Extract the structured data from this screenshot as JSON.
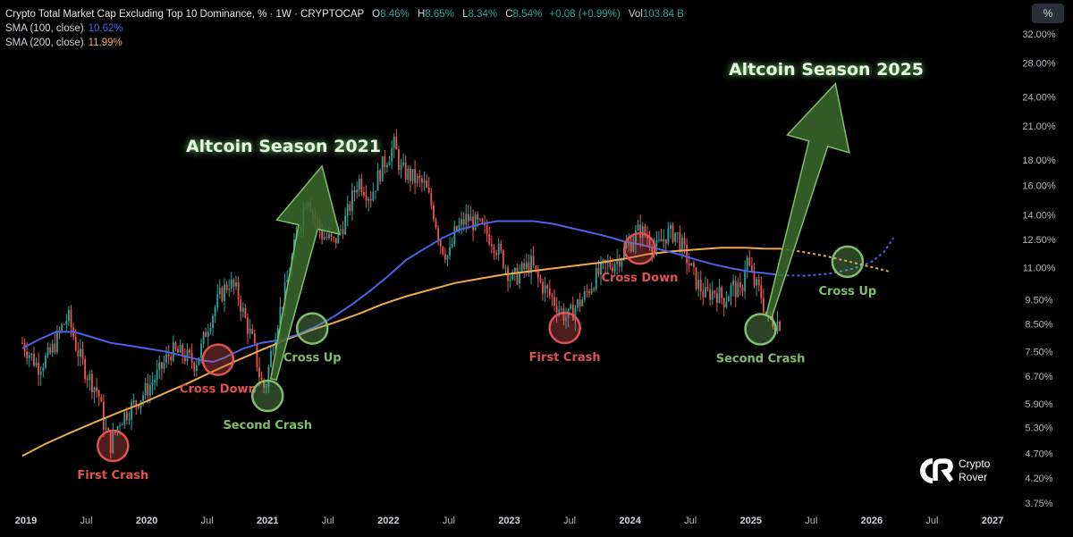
{
  "header": {
    "symbol_title": "Crypto Total Market Cap Excluding Top 10 Dominance, % · 1W · CRYPTOCAP",
    "open_label": "O",
    "open": "8.46%",
    "high_label": "H",
    "high": "8.65%",
    "low_label": "L",
    "low": "8.34%",
    "close_label": "C",
    "close": "8.54%",
    "change": "+0.08 (+0.99%)",
    "vol_label": "Vol",
    "vol": "103.84 B",
    "sma100_label": "SMA (100, close)",
    "sma100_value": "10.62%",
    "sma200_label": "SMA (200, close)",
    "sma200_value": "11.99%"
  },
  "controls": {
    "scale_mode": "%"
  },
  "watermark": {
    "line1": "Crypto",
    "line2": "Rover"
  },
  "colors": {
    "up": "#26a69a",
    "down": "#ef5350",
    "sma100": "#4a63e8",
    "sma200": "#f0a94b",
    "annot_red": "#e05252",
    "annot_green": "#7fbf6a",
    "arrow_fill": "#3b6a2e",
    "arrow_stroke": "#7fbf6a"
  },
  "chart_data": {
    "type": "candlestick",
    "title": "Crypto Total Market Cap Excluding Top 10 Dominance, %",
    "y_scale": "log",
    "ylim": [
      3.6,
      34
    ],
    "y_ticks": [
      "32.00%",
      "28.00%",
      "24.00%",
      "21.00%",
      "18.00%",
      "16.00%",
      "14.00%",
      "12.50%",
      "11.00%",
      "9.50%",
      "8.50%",
      "7.50%",
      "6.70%",
      "5.90%",
      "5.30%",
      "4.70%",
      "4.20%",
      "3.75%"
    ],
    "y_tick_values": [
      32,
      28,
      24,
      21,
      18,
      16,
      14,
      12.5,
      11,
      9.5,
      8.5,
      7.5,
      6.7,
      5.9,
      5.3,
      4.7,
      4.2,
      3.75
    ],
    "x_range": [
      2018.95,
      2027.7
    ],
    "x_ticks": [
      {
        "label": "2019",
        "x": 2019.0,
        "bold": true
      },
      {
        "label": "Jul",
        "x": 2019.5
      },
      {
        "label": "2020",
        "x": 2020.0,
        "bold": true
      },
      {
        "label": "Jul",
        "x": 2020.5
      },
      {
        "label": "2021",
        "x": 2021.0,
        "bold": true
      },
      {
        "label": "Jul",
        "x": 2021.5
      },
      {
        "label": "2022",
        "x": 2022.0,
        "bold": true
      },
      {
        "label": "Jul",
        "x": 2022.5
      },
      {
        "label": "2023",
        "x": 2023.0,
        "bold": true
      },
      {
        "label": "Jul",
        "x": 2023.5
      },
      {
        "label": "2024",
        "x": 2024.0,
        "bold": true
      },
      {
        "label": "Jul",
        "x": 2024.5
      },
      {
        "label": "2025",
        "x": 2025.0,
        "bold": true
      },
      {
        "label": "Jul",
        "x": 2025.5
      },
      {
        "label": "2026",
        "x": 2026.0,
        "bold": true
      },
      {
        "label": "Jul",
        "x": 2026.5
      },
      {
        "label": "2027",
        "x": 2027.0,
        "bold": true
      }
    ],
    "price_path": [
      [
        2018.97,
        7.8
      ],
      [
        2019.1,
        7.0
      ],
      [
        2019.2,
        7.4
      ],
      [
        2019.3,
        8.4
      ],
      [
        2019.35,
        8.8
      ],
      [
        2019.42,
        7.6
      ],
      [
        2019.5,
        6.8
      ],
      [
        2019.6,
        6.2
      ],
      [
        2019.65,
        5.3
      ],
      [
        2019.7,
        4.9
      ],
      [
        2019.78,
        5.5
      ],
      [
        2019.9,
        5.9
      ],
      [
        2020.0,
        6.3
      ],
      [
        2020.1,
        6.8
      ],
      [
        2020.2,
        7.5
      ],
      [
        2020.3,
        7.4
      ],
      [
        2020.4,
        7.1
      ],
      [
        2020.45,
        7.6
      ],
      [
        2020.5,
        8.4
      ],
      [
        2020.6,
        9.6
      ],
      [
        2020.68,
        10.3
      ],
      [
        2020.75,
        9.8
      ],
      [
        2020.8,
        8.9
      ],
      [
        2020.88,
        7.8
      ],
      [
        2020.94,
        6.6
      ],
      [
        2020.98,
        6.3
      ],
      [
        2021.05,
        8.0
      ],
      [
        2021.15,
        10.0
      ],
      [
        2021.25,
        13.0
      ],
      [
        2021.33,
        15.5
      ],
      [
        2021.38,
        14.0
      ],
      [
        2021.45,
        12.8
      ],
      [
        2021.55,
        12.3
      ],
      [
        2021.65,
        13.8
      ],
      [
        2021.75,
        16.5
      ],
      [
        2021.85,
        15.2
      ],
      [
        2021.95,
        17.5
      ],
      [
        2022.05,
        19.3
      ],
      [
        2022.1,
        17.2
      ],
      [
        2022.2,
        16.6
      ],
      [
        2022.3,
        16.0
      ],
      [
        2022.37,
        14.3
      ],
      [
        2022.43,
        12.3
      ],
      [
        2022.5,
        11.5
      ],
      [
        2022.55,
        12.9
      ],
      [
        2022.65,
        13.8
      ],
      [
        2022.75,
        13.3
      ],
      [
        2022.85,
        12.6
      ],
      [
        2022.95,
        11.4
      ],
      [
        2023.02,
        10.4
      ],
      [
        2023.1,
        10.8
      ],
      [
        2023.18,
        11.2
      ],
      [
        2023.25,
        10.3
      ],
      [
        2023.35,
        9.6
      ],
      [
        2023.42,
        9.1
      ],
      [
        2023.48,
        8.7
      ],
      [
        2023.55,
        9.2
      ],
      [
        2023.62,
        9.6
      ],
      [
        2023.7,
        10.4
      ],
      [
        2023.78,
        11.0
      ],
      [
        2023.85,
        11.2
      ],
      [
        2023.92,
        11.6
      ],
      [
        2024.0,
        12.3
      ],
      [
        2024.08,
        13.1
      ],
      [
        2024.15,
        12.6
      ],
      [
        2024.22,
        12.0
      ],
      [
        2024.3,
        12.8
      ],
      [
        2024.38,
        12.9
      ],
      [
        2024.45,
        11.8
      ],
      [
        2024.5,
        11.0
      ],
      [
        2024.55,
        10.3
      ],
      [
        2024.62,
        9.7
      ],
      [
        2024.7,
        9.9
      ],
      [
        2024.78,
        9.5
      ],
      [
        2024.85,
        10.1
      ],
      [
        2024.92,
        9.7
      ],
      [
        2024.96,
        11.6
      ],
      [
        2025.02,
        10.3
      ],
      [
        2025.08,
        9.8
      ],
      [
        2025.13,
        8.8
      ],
      [
        2025.2,
        8.6
      ],
      [
        2025.25,
        8.54
      ]
    ],
    "sma100": [
      [
        2018.97,
        7.6
      ],
      [
        2019.1,
        7.9
      ],
      [
        2019.25,
        8.2
      ],
      [
        2019.4,
        8.2
      ],
      [
        2019.55,
        8.0
      ],
      [
        2019.7,
        7.8
      ],
      [
        2019.85,
        7.7
      ],
      [
        2020.0,
        7.6
      ],
      [
        2020.15,
        7.5
      ],
      [
        2020.3,
        7.35
      ],
      [
        2020.45,
        7.2
      ],
      [
        2020.55,
        7.15
      ],
      [
        2020.65,
        7.3
      ],
      [
        2020.8,
        7.6
      ],
      [
        2020.95,
        7.8
      ],
      [
        2021.1,
        7.9
      ],
      [
        2021.25,
        8.1
      ],
      [
        2021.4,
        8.4
      ],
      [
        2021.55,
        8.8
      ],
      [
        2021.7,
        9.3
      ],
      [
        2021.85,
        9.9
      ],
      [
        2022.0,
        10.6
      ],
      [
        2022.15,
        11.4
      ],
      [
        2022.3,
        12.0
      ],
      [
        2022.45,
        12.6
      ],
      [
        2022.6,
        13.1
      ],
      [
        2022.75,
        13.4
      ],
      [
        2022.9,
        13.6
      ],
      [
        2023.05,
        13.6
      ],
      [
        2023.2,
        13.6
      ],
      [
        2023.35,
        13.45
      ],
      [
        2023.5,
        13.2
      ],
      [
        2023.65,
        12.95
      ],
      [
        2023.8,
        12.7
      ],
      [
        2023.95,
        12.4
      ],
      [
        2024.1,
        12.2
      ],
      [
        2024.25,
        11.95
      ],
      [
        2024.4,
        11.7
      ],
      [
        2024.55,
        11.4
      ],
      [
        2024.7,
        11.15
      ],
      [
        2024.85,
        10.95
      ],
      [
        2025.0,
        10.8
      ],
      [
        2025.15,
        10.7
      ],
      [
        2025.25,
        10.62
      ]
    ],
    "sma100_projection": [
      [
        2025.25,
        10.62
      ],
      [
        2025.45,
        10.6
      ],
      [
        2025.65,
        10.7
      ],
      [
        2025.85,
        10.95
      ],
      [
        2026.0,
        11.3
      ],
      [
        2026.1,
        11.8
      ],
      [
        2026.18,
        12.6
      ]
    ],
    "sma200": [
      [
        2018.97,
        4.65
      ],
      [
        2019.15,
        4.9
      ],
      [
        2019.35,
        5.15
      ],
      [
        2019.55,
        5.4
      ],
      [
        2019.75,
        5.65
      ],
      [
        2019.95,
        5.9
      ],
      [
        2020.15,
        6.2
      ],
      [
        2020.35,
        6.5
      ],
      [
        2020.55,
        6.85
      ],
      [
        2020.75,
        7.2
      ],
      [
        2020.95,
        7.55
      ],
      [
        2021.15,
        7.9
      ],
      [
        2021.35,
        8.25
      ],
      [
        2021.55,
        8.55
      ],
      [
        2021.75,
        8.9
      ],
      [
        2021.95,
        9.3
      ],
      [
        2022.15,
        9.65
      ],
      [
        2022.35,
        9.95
      ],
      [
        2022.55,
        10.25
      ],
      [
        2022.75,
        10.45
      ],
      [
        2022.95,
        10.65
      ],
      [
        2023.15,
        10.8
      ],
      [
        2023.35,
        10.95
      ],
      [
        2023.55,
        11.1
      ],
      [
        2023.75,
        11.25
      ],
      [
        2023.95,
        11.45
      ],
      [
        2024.15,
        11.7
      ],
      [
        2024.35,
        11.85
      ],
      [
        2024.55,
        11.95
      ],
      [
        2024.75,
        12.05
      ],
      [
        2024.95,
        12.05
      ],
      [
        2025.1,
        12.0
      ],
      [
        2025.25,
        11.99
      ]
    ],
    "sma200_projection": [
      [
        2025.25,
        11.99
      ],
      [
        2025.45,
        11.8
      ],
      [
        2025.65,
        11.55
      ],
      [
        2025.85,
        11.25
      ],
      [
        2026.05,
        10.95
      ],
      [
        2026.15,
        10.8
      ]
    ],
    "annotations": {
      "circles": [
        {
          "label": "First Crash",
          "x": 2019.72,
          "y": 4.87,
          "color": "red"
        },
        {
          "label": "Cross Down",
          "x": 2020.59,
          "y": 7.22,
          "color": "red"
        },
        {
          "label": "Second Crash",
          "x": 2021.0,
          "y": 6.12,
          "color": "green"
        },
        {
          "label": "Cross Up",
          "x": 2021.37,
          "y": 8.33,
          "color": "green"
        },
        {
          "label": "First Crash",
          "x": 2023.46,
          "y": 8.35,
          "color": "red"
        },
        {
          "label": "Cross Down",
          "x": 2024.08,
          "y": 12.0,
          "color": "red"
        },
        {
          "label": "Second Crash",
          "x": 2025.08,
          "y": 8.3,
          "color": "green"
        },
        {
          "label": "Cross Up",
          "x": 2025.8,
          "y": 11.3,
          "color": "green"
        }
      ],
      "arrows": [
        {
          "label": "Altcoin Season 2021",
          "tail_x": 2021.05,
          "tail_y": 6.6,
          "head_x": 2021.45,
          "head_y": 17.5
        },
        {
          "label": "Altcoin Season 2025",
          "tail_x": 2025.15,
          "tail_y": 8.8,
          "head_x": 2025.7,
          "head_y": 25.5
        }
      ]
    }
  }
}
